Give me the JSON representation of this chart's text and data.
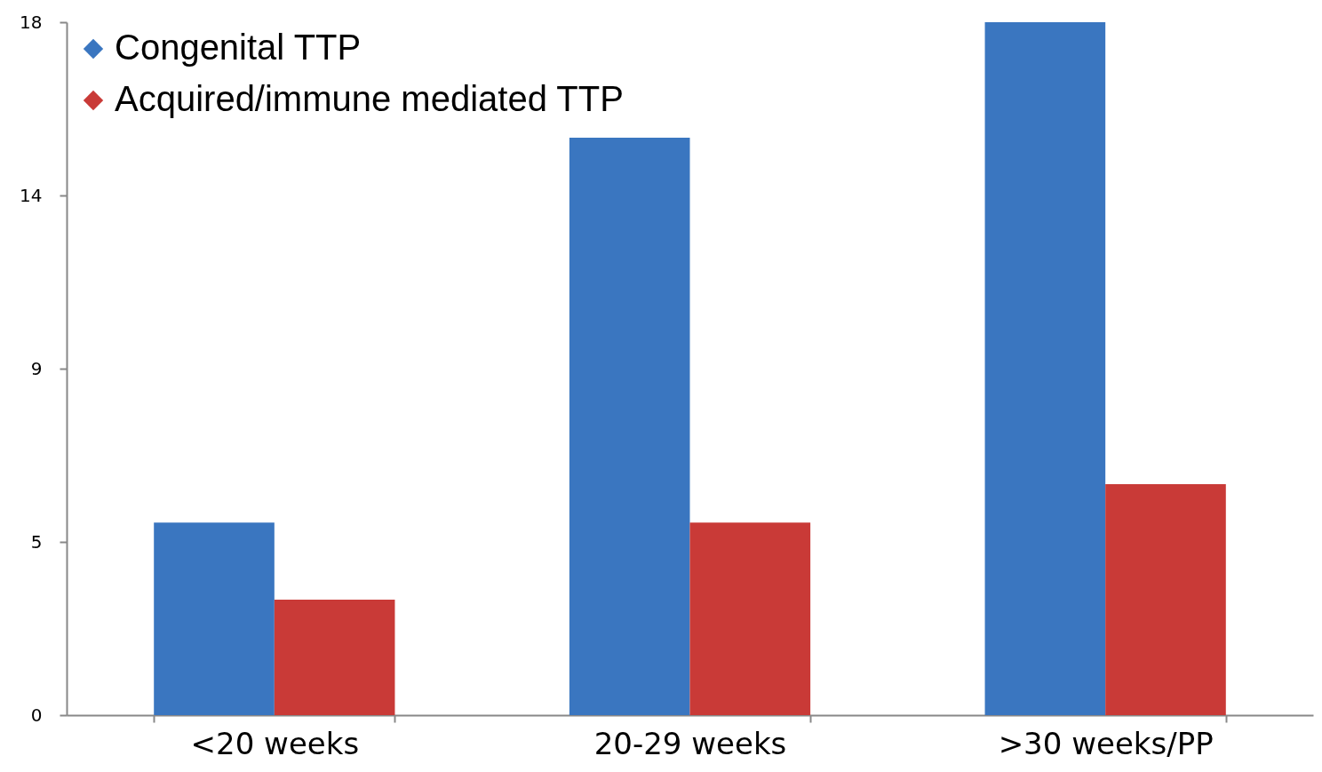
{
  "chart_data": {
    "type": "bar",
    "categories": [
      "<20 weeks",
      "20-29 weeks",
      ">30 weeks/PP"
    ],
    "series": [
      {
        "name": "Congenital TTP",
        "color": "#3a76c0",
        "values": [
          5,
          15,
          18
        ]
      },
      {
        "name": "Acquired/immune mediated TTP",
        "color": "#c93a37",
        "values": [
          3,
          5,
          6
        ]
      }
    ],
    "ylim": [
      0,
      18
    ],
    "yticks": [
      0,
      {
        "value": 4.5,
        "label": "5"
      },
      9,
      {
        "value": 13.5,
        "label": "14"
      },
      18
    ],
    "grid": false,
    "legend": "top left"
  }
}
